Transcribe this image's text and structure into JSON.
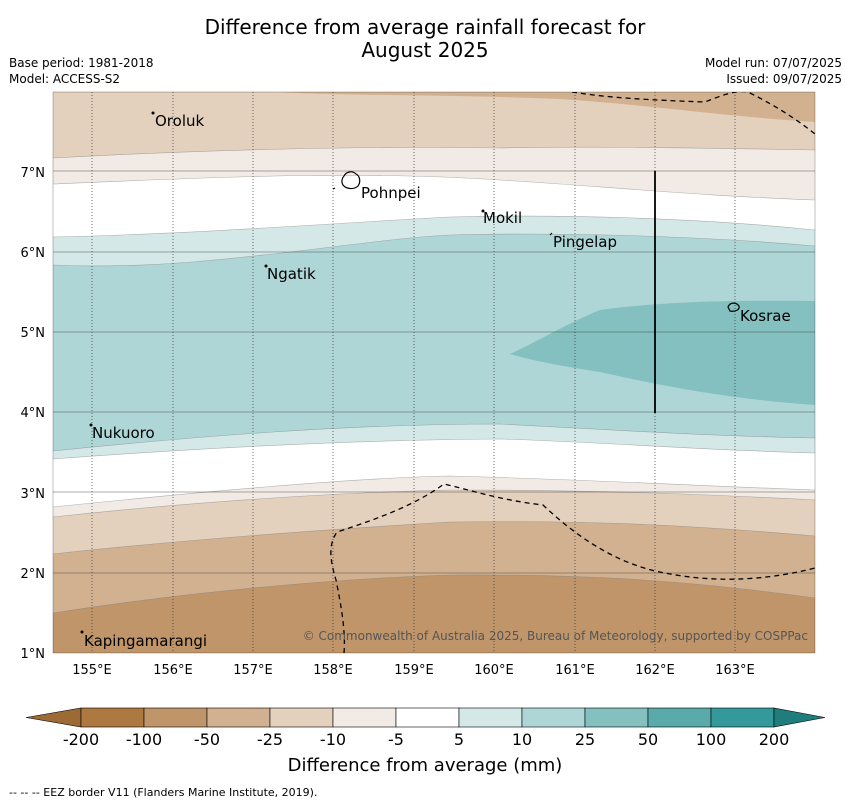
{
  "title": {
    "line1": "Difference from average rainfall forecast for",
    "line2": "August 2025"
  },
  "meta": {
    "base_period": "Base period: 1981-2018",
    "model": "Model: ACCESS-S2",
    "model_run": "Model run: 07/07/2025",
    "issued": "Issued: 09/07/2025"
  },
  "map": {
    "lon_ticks": [
      "155°E",
      "156°E",
      "157°E",
      "158°E",
      "159°E",
      "160°E",
      "161°E",
      "162°E",
      "163°E"
    ],
    "lat_ticks": [
      "1°N",
      "2°N",
      "3°N",
      "4°N",
      "5°N",
      "6°N",
      "7°N"
    ],
    "places": [
      {
        "name": "Oroluk",
        "lon": 155.75,
        "lat": 7.65
      },
      {
        "name": "Pohnpei",
        "lon": 158.33,
        "lat": 6.9
      },
      {
        "name": "Mokil",
        "lon": 159.85,
        "lat": 6.43
      },
      {
        "name": "Pingelap",
        "lon": 160.72,
        "lat": 6.2
      },
      {
        "name": "Ngatik",
        "lon": 157.17,
        "lat": 5.82
      },
      {
        "name": "Kosrae",
        "lon": 162.98,
        "lat": 5.32
      },
      {
        "name": "Nukuoro",
        "lon": 154.97,
        "lat": 3.85
      },
      {
        "name": "Kapingamarangi",
        "lon": 154.8,
        "lat": 1.08
      }
    ],
    "credit": "© Commonwealth of Australia 2025, Bureau of Meteorology, supported by COSPPac"
  },
  "colorbar": {
    "labels": [
      "-200",
      "-100",
      "-50",
      "-25",
      "-10",
      "-5",
      "5",
      "10",
      "25",
      "50",
      "100",
      "200"
    ],
    "colors": [
      "#9c6b35",
      "#ae7941",
      "#c0956a",
      "#d2b190",
      "#e3d0bd",
      "#f2ebe5",
      "#ffffff",
      "#d5e8e8",
      "#afd6d6",
      "#84c0bf",
      "#59aaa9",
      "#33999a",
      "#1f7d7d"
    ],
    "title": "Difference from average (mm)"
  },
  "footer": "--  --  -- EEZ border V11 (Flanders Marine Institute, 2019)."
}
